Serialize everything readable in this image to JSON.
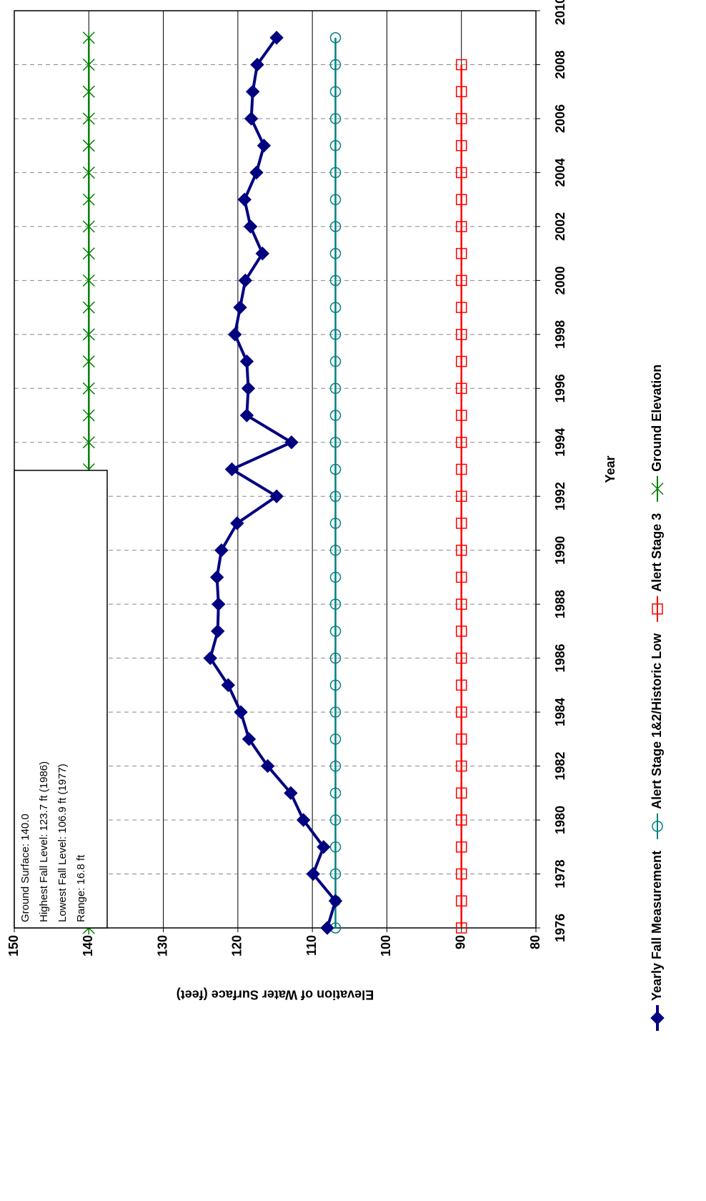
{
  "chart_data": {
    "type": "line",
    "x_label": "Year",
    "y_label": "Elevation of Water Surface (feet)",
    "x": [
      1976,
      1977,
      1978,
      1979,
      1980,
      1981,
      1982,
      1983,
      1984,
      1985,
      1986,
      1987,
      1988,
      1989,
      1990,
      1991,
      1992,
      1993,
      1994,
      1995,
      1996,
      1997,
      1998,
      1999,
      2000,
      2001,
      2002,
      2003,
      2004,
      2005,
      2006,
      2007,
      2008,
      2009
    ],
    "series": [
      {
        "name": "Yearly Fall Measurement",
        "color": "#000080",
        "marker": "diamond",
        "values": [
          108.0,
          106.9,
          109.9,
          108.5,
          111.2,
          112.9,
          116.0,
          118.5,
          119.6,
          121.3,
          123.7,
          122.7,
          122.6,
          122.8,
          122.2,
          120.1,
          114.8,
          120.8,
          112.8,
          118.8,
          118.6,
          118.8,
          120.4,
          119.7,
          119.0,
          116.7,
          118.3,
          119.1,
          117.5,
          116.5,
          118.2,
          118.0,
          117.4,
          114.8
        ]
      },
      {
        "name": "Alert Stage 1&2/Historic Low",
        "color": "#008080",
        "marker": "circle",
        "values": [
          106.9,
          106.9,
          106.9,
          106.9,
          106.9,
          106.9,
          106.9,
          106.9,
          106.9,
          106.9,
          106.9,
          106.9,
          106.9,
          106.9,
          106.9,
          106.9,
          106.9,
          106.9,
          106.9,
          106.9,
          106.9,
          106.9,
          106.9,
          106.9,
          106.9,
          106.9,
          106.9,
          106.9,
          106.9,
          106.9,
          106.9,
          106.9,
          106.9,
          106.9
        ]
      },
      {
        "name": "Alert Stage 3",
        "color": "#ff0000",
        "marker": "square",
        "values": [
          90,
          90,
          90,
          90,
          90,
          90,
          90,
          90,
          90,
          90,
          90,
          90,
          90,
          90,
          90,
          90,
          90,
          90,
          90,
          90,
          90,
          90,
          90,
          90,
          90,
          90,
          90,
          90,
          90,
          90,
          90,
          90,
          90,
          null
        ]
      },
      {
        "name": "Ground Elevation",
        "color": "#008000",
        "marker": "star",
        "values": [
          140,
          140,
          140,
          140,
          140,
          140,
          140,
          140,
          140,
          140,
          140,
          140,
          140,
          140,
          140,
          140,
          140,
          140,
          140,
          140,
          140,
          140,
          140,
          140,
          140,
          140,
          140,
          140,
          140,
          140,
          140,
          140,
          140,
          140
        ]
      }
    ],
    "xlim": [
      1976,
      2010
    ],
    "xticks": [
      1976,
      1978,
      1980,
      1982,
      1984,
      1986,
      1988,
      1990,
      1992,
      1994,
      1996,
      1998,
      2000,
      2002,
      2004,
      2006,
      2008,
      2010
    ],
    "ylim": [
      80,
      150
    ],
    "yticks": [
      80,
      90,
      100,
      110,
      120,
      130,
      140,
      150
    ],
    "grid": true,
    "legend": "bottom",
    "annotation": [
      "Ground Surface: 140.0",
      "Highest Fall Level: 123.7 ft (1986)",
      "Lowest Fall Level: 106.9 ft (1977)",
      "Range: 16.8 ft"
    ]
  }
}
